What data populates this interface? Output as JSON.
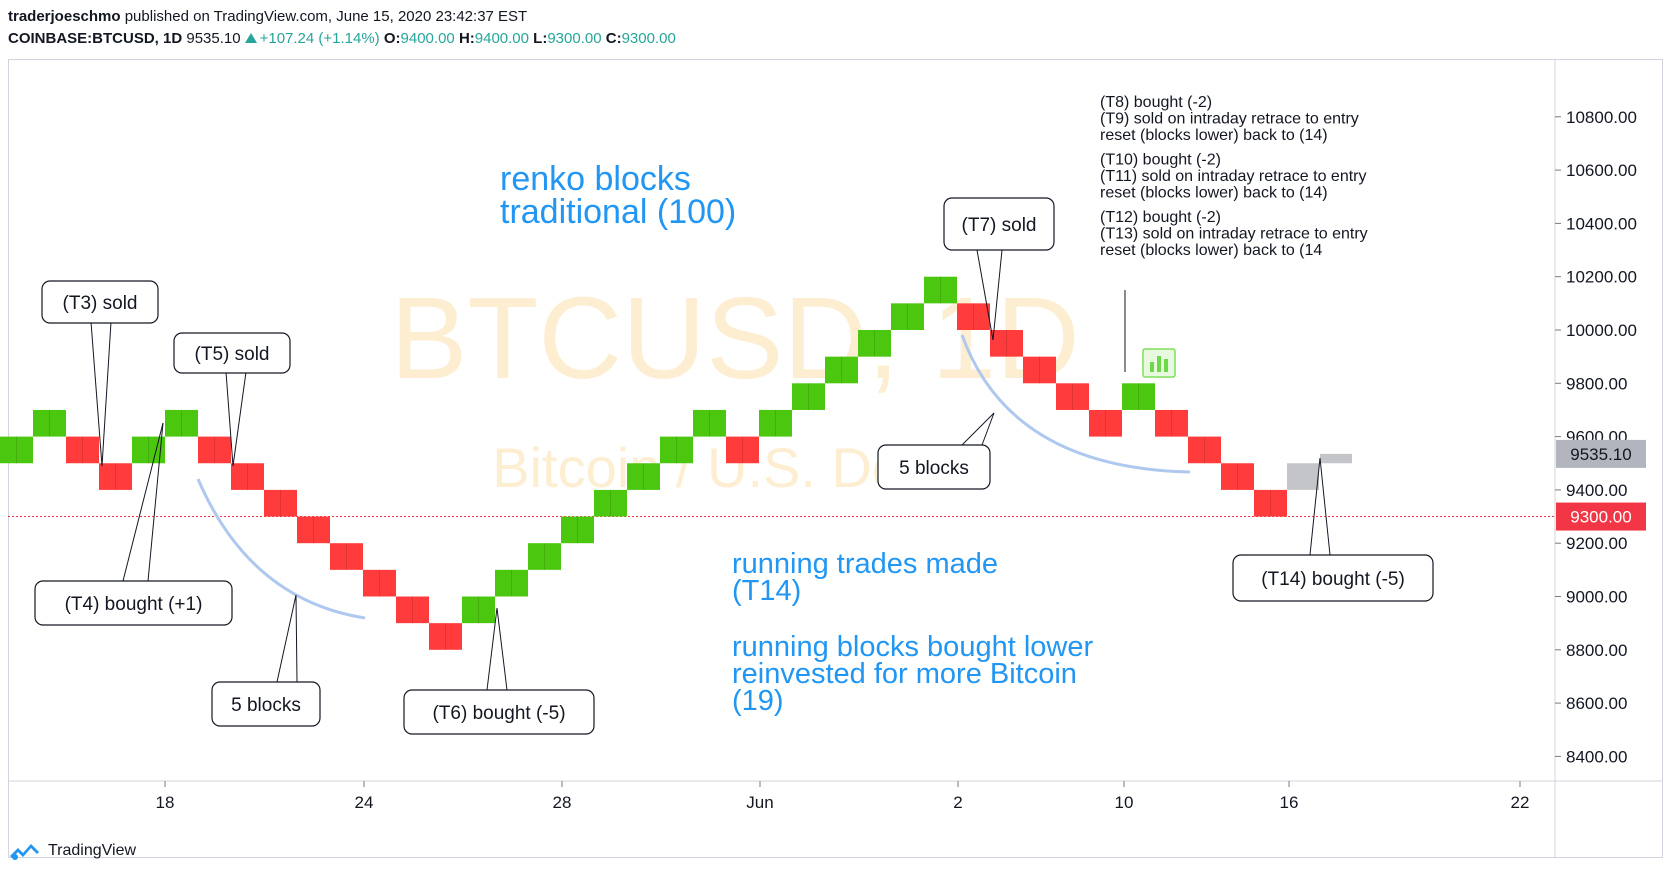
{
  "header": {
    "author": "traderjoeschmo",
    "published_text": "published on TradingView.com, June 15, 2020 23:42:37 EST",
    "symbol": "COINBASE:BTCUSD, 1D",
    "last": "9535.10",
    "change": "+107.24 (+1.14%)",
    "open_label": "O:",
    "open": "9400.00",
    "high_label": "H:",
    "high": "9400.00",
    "low_label": "L:",
    "low": "9300.00",
    "close_label": "C:",
    "close": "9300.00"
  },
  "watermark": {
    "symbol": "BTCUSD, 1D",
    "name": "Bitcoin / U.S. Dollar"
  },
  "footer": {
    "brand": "TradingView"
  },
  "colors": {
    "up": "#4bc70f",
    "down": "#ff3b3b",
    "pending": "#c4c5c9",
    "annotation_blue": "#2196f3",
    "curve_blue": "#aec8ef",
    "current_price_bg": "#b2b5be",
    "red_line": "#f23645"
  },
  "chart_data": {
    "type": "renko",
    "box_size": 100,
    "y_ticks": [
      8400,
      8600,
      8800,
      9000,
      9200,
      9400,
      9600,
      9800,
      10000,
      10200,
      10400,
      10600,
      10800
    ],
    "y_tick_labels": [
      "8400.00",
      "8600.00",
      "8800.00",
      "9000.00",
      "9200.00",
      "9400.00",
      "9600.00",
      "9800.00",
      "10000.00",
      "10200.00",
      "10400.00",
      "10600.00",
      "10800.00"
    ],
    "ylim": [
      8400,
      10900
    ],
    "x_ticks": [
      "18",
      "24",
      "28",
      "Jun",
      "2",
      "10",
      "16",
      "22"
    ],
    "current_price_label": "9535.10",
    "current_price": 9535.1,
    "red_line_label": "9300.00",
    "red_line_price": 9300,
    "bricks": [
      {
        "lo": 9500,
        "hi": 9600,
        "dir": "up"
      },
      {
        "lo": 9600,
        "hi": 9700,
        "dir": "up"
      },
      {
        "lo": 9500,
        "hi": 9600,
        "dir": "down"
      },
      {
        "lo": 9400,
        "hi": 9500,
        "dir": "down"
      },
      {
        "lo": 9500,
        "hi": 9600,
        "dir": "up"
      },
      {
        "lo": 9600,
        "hi": 9700,
        "dir": "up"
      },
      {
        "lo": 9500,
        "hi": 9600,
        "dir": "down"
      },
      {
        "lo": 9400,
        "hi": 9500,
        "dir": "down"
      },
      {
        "lo": 9300,
        "hi": 9400,
        "dir": "down"
      },
      {
        "lo": 9200,
        "hi": 9300,
        "dir": "down"
      },
      {
        "lo": 9100,
        "hi": 9200,
        "dir": "down"
      },
      {
        "lo": 9000,
        "hi": 9100,
        "dir": "down"
      },
      {
        "lo": 8900,
        "hi": 9000,
        "dir": "down"
      },
      {
        "lo": 8800,
        "hi": 8900,
        "dir": "down"
      },
      {
        "lo": 8900,
        "hi": 9000,
        "dir": "up"
      },
      {
        "lo": 9000,
        "hi": 9100,
        "dir": "up"
      },
      {
        "lo": 9100,
        "hi": 9200,
        "dir": "up"
      },
      {
        "lo": 9200,
        "hi": 9300,
        "dir": "up"
      },
      {
        "lo": 9300,
        "hi": 9400,
        "dir": "up"
      },
      {
        "lo": 9400,
        "hi": 9500,
        "dir": "up"
      },
      {
        "lo": 9500,
        "hi": 9600,
        "dir": "up"
      },
      {
        "lo": 9600,
        "hi": 9700,
        "dir": "up"
      },
      {
        "lo": 9500,
        "hi": 9600,
        "dir": "down"
      },
      {
        "lo": 9600,
        "hi": 9700,
        "dir": "up"
      },
      {
        "lo": 9700,
        "hi": 9800,
        "dir": "up"
      },
      {
        "lo": 9800,
        "hi": 9900,
        "dir": "up"
      },
      {
        "lo": 9900,
        "hi": 10000,
        "dir": "up"
      },
      {
        "lo": 10000,
        "hi": 10100,
        "dir": "up"
      },
      {
        "lo": 10100,
        "hi": 10200,
        "dir": "up"
      },
      {
        "lo": 10000,
        "hi": 10100,
        "dir": "down"
      },
      {
        "lo": 9900,
        "hi": 10000,
        "dir": "down"
      },
      {
        "lo": 9800,
        "hi": 9900,
        "dir": "down"
      },
      {
        "lo": 9700,
        "hi": 9800,
        "dir": "down"
      },
      {
        "lo": 9600,
        "hi": 9700,
        "dir": "down"
      },
      {
        "lo": 9700,
        "hi": 9800,
        "dir": "up"
      },
      {
        "lo": 9600,
        "hi": 9700,
        "dir": "down"
      },
      {
        "lo": 9500,
        "hi": 9600,
        "dir": "down"
      },
      {
        "lo": 9400,
        "hi": 9500,
        "dir": "down"
      },
      {
        "lo": 9300,
        "hi": 9400,
        "dir": "down"
      },
      {
        "lo": 9400,
        "hi": 9500,
        "dir": "pending"
      },
      {
        "lo": 9500,
        "hi": 9535.1,
        "dir": "pending"
      }
    ],
    "text_annotations": [
      {
        "id": "renko",
        "lines": [
          "renko blocks",
          "traditional (100)"
        ]
      },
      {
        "id": "running-trades",
        "lines": [
          "running trades made",
          "(T14)"
        ]
      },
      {
        "id": "running-blocks",
        "lines": [
          "running blocks bought lower",
          "reinvested for more Bitcoin",
          "(19)"
        ]
      },
      {
        "id": "notes",
        "lines": [
          "(T8) bought (-2)",
          "(T9) sold on intraday retrace to entry",
          "reset (blocks lower) back to (14)",
          "",
          "(T10) bought (-2)",
          "(T11) sold on intraday retrace to entry",
          "reset (blocks lower) back to (14)",
          "",
          "(T12) bought (-2)",
          "(T13) sold on intraday retrace to entry",
          "reset (blocks lower) back to (14"
        ]
      }
    ],
    "callouts": [
      {
        "id": "t3",
        "text": "(T3) sold"
      },
      {
        "id": "t5",
        "text": "(T5) sold"
      },
      {
        "id": "t4",
        "text": "(T4) bought (+1)"
      },
      {
        "id": "fiveblocks1",
        "text": "5 blocks"
      },
      {
        "id": "t6",
        "text": "(T6) bought (-5)"
      },
      {
        "id": "t7",
        "text": "(T7) sold"
      },
      {
        "id": "fiveblocks2",
        "text": "5 blocks"
      },
      {
        "id": "t14",
        "text": "(T14) bought (-5)"
      }
    ]
  }
}
